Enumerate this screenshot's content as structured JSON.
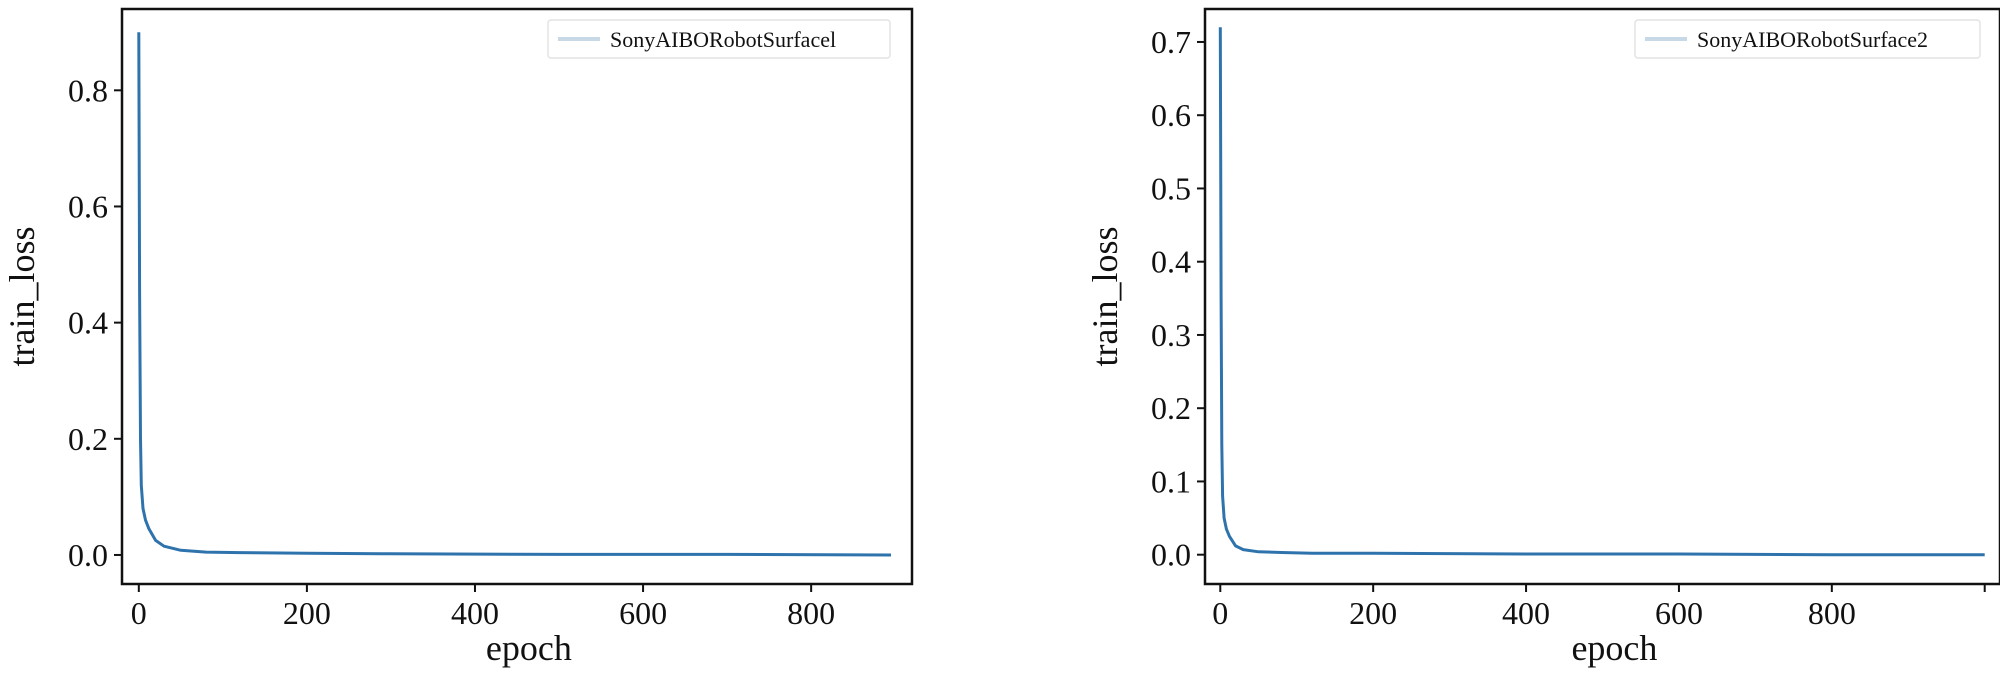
{
  "colors": {
    "line": "#2f73ad",
    "legend_swatch": "#c7d9e6",
    "frame": "#111111"
  },
  "chart_data": [
    {
      "type": "line",
      "xlabel": "epoch",
      "ylabel": "train_loss",
      "xlim": [
        -20,
        920
      ],
      "ylim": [
        -0.05,
        0.94
      ],
      "xticks": [
        0,
        200,
        400,
        600,
        800
      ],
      "xtick_labels": [
        "0",
        "200",
        "400",
        "600",
        "800"
      ],
      "yticks": [
        0.0,
        0.2,
        0.4,
        0.6,
        0.8
      ],
      "ytick_labels": [
        "0.0",
        "0.2",
        "0.4",
        "0.6",
        "0.8"
      ],
      "grid": false,
      "legend": "top-right",
      "series": [
        {
          "name": "SonyAIBORobotSurfacel",
          "x": [
            0,
            1,
            2,
            3,
            5,
            8,
            12,
            20,
            30,
            50,
            80,
            120,
            200,
            300,
            500,
            700,
            895
          ],
          "y": [
            0.9,
            0.45,
            0.2,
            0.12,
            0.08,
            0.06,
            0.045,
            0.025,
            0.015,
            0.008,
            0.005,
            0.004,
            0.003,
            0.002,
            0.001,
            0.001,
            0.0
          ]
        }
      ]
    },
    {
      "type": "line",
      "xlabel": "epoch",
      "ylabel": "train_loss",
      "xlim": [
        -20,
        1020
      ],
      "ylim": [
        -0.04,
        0.745
      ],
      "xticks": [
        0,
        200,
        400,
        600,
        800,
        1000
      ],
      "xtick_labels": [
        "0",
        "200",
        "400",
        "600",
        "800",
        ""
      ],
      "yticks": [
        0.0,
        0.1,
        0.2,
        0.3,
        0.4,
        0.5,
        0.6,
        0.7
      ],
      "ytick_labels": [
        "0.0",
        "0.1",
        "0.2",
        "0.3",
        "0.4",
        "0.5",
        "0.6",
        "0.7"
      ],
      "grid": false,
      "legend": "top-right",
      "series": [
        {
          "name": "SonyAIBORobotSurface2",
          "x": [
            0,
            1,
            2,
            3,
            5,
            8,
            12,
            20,
            30,
            50,
            80,
            120,
            200,
            400,
            600,
            800,
            1000
          ],
          "y": [
            0.72,
            0.35,
            0.15,
            0.08,
            0.05,
            0.035,
            0.025,
            0.012,
            0.007,
            0.004,
            0.003,
            0.002,
            0.002,
            0.001,
            0.001,
            0.0,
            0.0
          ]
        }
      ]
    }
  ]
}
